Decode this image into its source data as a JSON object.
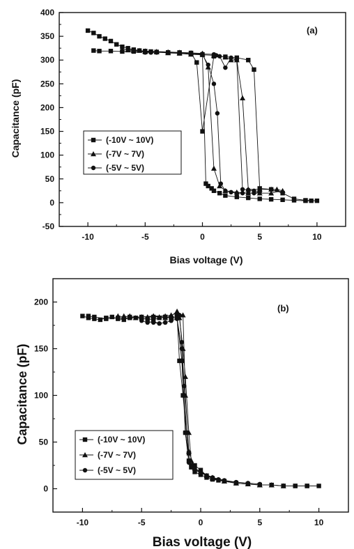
{
  "chart_data": [
    {
      "type": "line",
      "panel_label": "(a)",
      "xlabel": "Bias voltage (V)",
      "ylabel": "Capacitance (pF)",
      "xlim": [
        -12.5,
        12.5
      ],
      "ylim": [
        -50,
        400
      ],
      "xticks": [
        -10,
        -5,
        0,
        5,
        10
      ],
      "yticks": [
        -50,
        0,
        50,
        100,
        150,
        200,
        250,
        300,
        350,
        400
      ],
      "grid": false,
      "legend_position": "middle-left",
      "series": [
        {
          "name": "(-10V ~ 10V)",
          "marker": "square",
          "x": [
            -10,
            -9.5,
            -9,
            -8.5,
            -8,
            -7.5,
            -7,
            -6.5,
            -6,
            -5.5,
            -5,
            -4.5,
            -4,
            -3,
            -2,
            -1,
            0,
            0.3,
            0.5,
            0.8,
            1,
            1.5,
            2,
            3,
            4,
            5,
            6,
            7,
            8,
            9,
            9.5,
            10,
            9,
            8,
            7,
            6,
            5,
            4.5,
            4,
            3,
            2,
            1,
            0,
            -0.5,
            -1,
            -2,
            -3,
            -4,
            -5,
            -6,
            -7,
            -8,
            -9,
            -9.5
          ],
          "y": [
            362,
            357,
            350,
            345,
            340,
            333,
            328,
            325,
            322,
            320,
            319,
            318,
            317,
            316,
            315,
            314,
            312,
            40,
            35,
            30,
            25,
            20,
            15,
            12,
            10,
            8,
            7,
            6,
            5,
            4,
            4,
            4,
            5,
            8,
            20,
            28,
            30,
            280,
            300,
            305,
            307,
            308,
            150,
            295,
            315,
            316,
            316,
            317,
            317,
            318,
            318,
            319,
            319,
            320
          ]
        },
        {
          "name": "(-7V ~ 7V)",
          "marker": "triangle",
          "x": [
            -7,
            -6.5,
            -6,
            -5.5,
            -5,
            -4,
            -3,
            -2,
            -1,
            0,
            0.5,
            1,
            1.5,
            2,
            3,
            4,
            5,
            6,
            7,
            6.5,
            6,
            5,
            4,
            3.5,
            3,
            2.5,
            2,
            1,
            0,
            -1,
            -2,
            -3,
            -4,
            -5,
            -6,
            -6.5
          ],
          "y": [
            322,
            322,
            321,
            320,
            319,
            318,
            317,
            316,
            315,
            314,
            285,
            72,
            35,
            25,
            22,
            20,
            20,
            20,
            25,
            28,
            28,
            28,
            28,
            220,
            300,
            300,
            306,
            310,
            311,
            312,
            314,
            315,
            317,
            318,
            320,
            321
          ]
        },
        {
          "name": "(-5V ~ 5V)",
          "marker": "circle",
          "x": [
            -5,
            -4.5,
            -4,
            -3,
            -2,
            -1,
            0,
            0.5,
            1,
            1.3,
            1.6,
            2,
            2.5,
            3,
            3.5,
            4,
            4.5,
            5,
            4.5,
            4,
            3.5,
            3,
            2.5,
            2,
            1.5,
            1.2,
            1,
            0,
            -1,
            -2,
            -3,
            -4,
            -4.5
          ],
          "y": [
            316,
            316,
            316,
            316,
            315,
            314,
            311,
            290,
            250,
            188,
            40,
            25,
            22,
            20,
            20,
            20,
            20,
            22,
            25,
            27,
            28,
            300,
            305,
            284,
            308,
            310,
            312,
            313,
            314,
            315,
            316,
            316,
            316
          ]
        }
      ]
    },
    {
      "type": "line",
      "panel_label": "(b)",
      "xlabel": "Bias voltage (V)",
      "ylabel": "Capacitance (pF)",
      "xlim": [
        -12.5,
        12.5
      ],
      "ylim": [
        -25,
        225
      ],
      "xticks": [
        -10,
        -5,
        0,
        5,
        10
      ],
      "yticks": [
        0,
        50,
        100,
        150,
        200
      ],
      "grid": false,
      "legend_position": "bottom-left",
      "series": [
        {
          "name": "(-10V ~ 10V)",
          "marker": "square",
          "x": [
            -10,
            -9.5,
            -9,
            -8.5,
            -8,
            -7.5,
            -7,
            -6.5,
            -6,
            -5.5,
            -5,
            -4.5,
            -4,
            -3.5,
            -3,
            -2.5,
            -2,
            -1.8,
            -1.5,
            -1.2,
            -1,
            -0.8,
            -0.5,
            0,
            0.5,
            1,
            1.5,
            2,
            3,
            4,
            5,
            6,
            7,
            8,
            9,
            10,
            9,
            8,
            7,
            6,
            5,
            4,
            3,
            2,
            1,
            0.5,
            0,
            -0.5,
            -1,
            -1.3,
            -1.6,
            -2,
            -2.5,
            -3,
            -4,
            -5,
            -6,
            -7,
            -8,
            -9,
            -9.5
          ],
          "y": [
            185,
            183,
            182,
            181,
            183,
            184,
            182,
            181,
            184,
            183,
            182,
            182,
            181,
            183,
            184,
            183,
            185,
            137,
            100,
            60,
            38,
            23,
            18,
            15,
            12,
            10,
            9,
            8,
            6,
            5,
            4,
            4,
            3,
            3,
            3,
            3,
            3,
            3,
            3,
            4,
            4,
            5,
            6,
            8,
            11,
            14,
            20,
            25,
            30,
            60,
            137,
            183,
            183,
            184,
            184,
            184,
            183,
            183,
            182,
            184,
            185
          ]
        },
        {
          "name": "(-7V ~ 7V)",
          "marker": "triangle",
          "x": [
            -7,
            -6.5,
            -6,
            -5.5,
            -5,
            -4.5,
            -4,
            -3.5,
            -3,
            -2.5,
            -2,
            -1.8,
            -1.5,
            -1.3,
            -1,
            -0.8,
            -0.5,
            0,
            0.5,
            1,
            2,
            3,
            4,
            5,
            6,
            7,
            6,
            5,
            4,
            3,
            2,
            1,
            0,
            -0.5,
            -1,
            -1.3,
            -1.5,
            -2,
            -2.5,
            -3,
            -4,
            -5,
            -6,
            -6.5
          ],
          "y": [
            185,
            184,
            185,
            183,
            184,
            184,
            185,
            184,
            183,
            185,
            190,
            183,
            150,
            120,
            60,
            30,
            22,
            18,
            14,
            11,
            8,
            6,
            5,
            4,
            4,
            3,
            4,
            4,
            5,
            6,
            8,
            12,
            18,
            22,
            40,
            100,
            186,
            188,
            186,
            185,
            185,
            184,
            184,
            185
          ]
        },
        {
          "name": "(-5V ~ 5V)",
          "marker": "circle",
          "x": [
            -5,
            -4.5,
            -4,
            -3.5,
            -3,
            -2.5,
            -2,
            -1.8,
            -1.6,
            -1.4,
            -1.2,
            -1,
            -0.8,
            -0.5,
            0,
            0.5,
            1,
            1.5,
            2,
            3,
            4,
            5,
            4,
            3,
            2,
            1,
            0,
            -0.5,
            -1,
            -1.3,
            -1.6,
            -2,
            -2.5,
            -3,
            -3.5,
            -4,
            -4.5
          ],
          "y": [
            180,
            178,
            179,
            177,
            178,
            180,
            182,
            186,
            157,
            110,
            60,
            30,
            25,
            20,
            17,
            14,
            12,
            10,
            8,
            7,
            6,
            5,
            6,
            7,
            9,
            12,
            17,
            22,
            28,
            60,
            150,
            182,
            180,
            178,
            177,
            178,
            179
          ]
        }
      ]
    }
  ]
}
